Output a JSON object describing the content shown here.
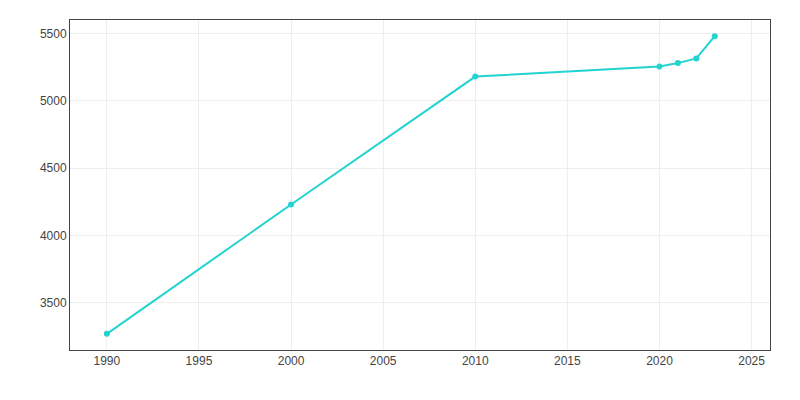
{
  "chart_data": {
    "type": "line",
    "x": [
      1990,
      2000,
      2010,
      2020,
      2021,
      2022,
      2023
    ],
    "values": [
      3270,
      4230,
      5180,
      5255,
      5280,
      5315,
      5480
    ],
    "color": "#22d3d0",
    "marker": "circle",
    "xlim": [
      1988,
      2026
    ],
    "ylim": [
      3150,
      5600
    ],
    "xticks": [
      1990,
      1995,
      2000,
      2005,
      2010,
      2015,
      2020,
      2025
    ],
    "yticks": [
      3500,
      4000,
      4500,
      5000,
      5500
    ],
    "grid": true
  }
}
